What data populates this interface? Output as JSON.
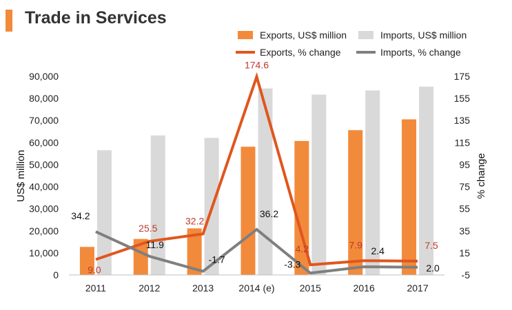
{
  "chart_data": {
    "type": "bar",
    "title": "Trade in Services",
    "categories": [
      "2011",
      "2012",
      "2013",
      "2014 (e)",
      "2015",
      "2016",
      "2017"
    ],
    "series": [
      {
        "name": "Exports, US$ million",
        "kind": "bar",
        "axis": "left",
        "color": "#f28a3b",
        "values": [
          12700,
          16300,
          21100,
          58100,
          60700,
          65600,
          70500
        ]
      },
      {
        "name": "Imports, US$ million",
        "kind": "bar",
        "axis": "left",
        "color": "#d9d9d9",
        "values": [
          56500,
          63200,
          62100,
          84500,
          81700,
          83600,
          85300
        ]
      },
      {
        "name": "Exports, % change",
        "kind": "line",
        "axis": "right",
        "color": "#e0561e",
        "label_color": "#c0392b",
        "values": [
          9.0,
          25.5,
          32.2,
          174.6,
          4.2,
          7.9,
          7.5
        ],
        "labels": [
          "9.0",
          "25.5",
          "32.2",
          "174.6",
          "4.2",
          "7.9",
          "7.5"
        ]
      },
      {
        "name": "Imports, % change",
        "kind": "line",
        "axis": "right",
        "color": "#7f7f7f",
        "label_color": "#111111",
        "values": [
          34.2,
          11.9,
          -1.7,
          36.2,
          -3.3,
          2.4,
          2.0
        ],
        "labels": [
          "34.2",
          "11.9",
          "-1.7",
          "36.2",
          "-3.3",
          "2.4",
          "2.0"
        ]
      }
    ],
    "ylabel": "US$ million",
    "y2label": "% change",
    "ylim": [
      0,
      90000
    ],
    "y2lim": [
      -5,
      175
    ],
    "yticks": [
      "0",
      "10,000",
      "20,000",
      "30,000",
      "40,000",
      "50,000",
      "60,000",
      "70,000",
      "80,000",
      "90,000"
    ],
    "y2ticks": [
      "-5",
      "15",
      "35",
      "55",
      "75",
      "95",
      "115",
      "135",
      "155",
      "175"
    ],
    "legend_position": "top-right"
  }
}
